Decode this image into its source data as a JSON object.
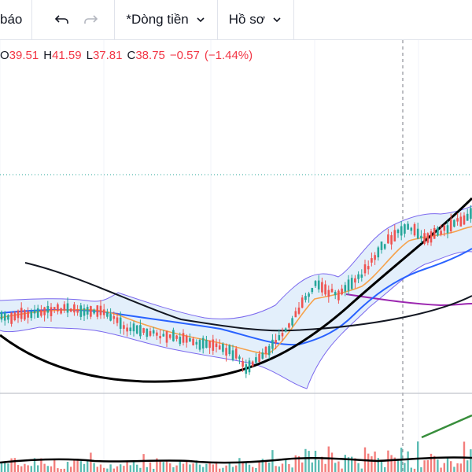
{
  "toolbar": {
    "alerts_label": "báo",
    "undo_icon": "undo-icon",
    "redo_icon": "redo-icon",
    "template_label": "*Dòng tiền",
    "profile_label": "Hồ sơ"
  },
  "ohlc": {
    "o_key": "O",
    "o_val": "39.51",
    "h_key": "H",
    "h_val": "41.59",
    "l_key": "L",
    "l_val": "37.81",
    "c_key": "C",
    "c_val": "38.75",
    "change": "−0.57",
    "change_pct": "(−1.44%)"
  },
  "colors": {
    "up": "#26a69a",
    "down": "#ef5350",
    "ma_short": "#f6a24b",
    "ma_blue": "#2962ff",
    "ma_black": "#131722",
    "ma_purple": "#9c27b0",
    "band_fill": "#e3effb",
    "band_line": "#7b68ee",
    "trend_green": "#388e3c",
    "level_line": "#26a69a"
  }
}
